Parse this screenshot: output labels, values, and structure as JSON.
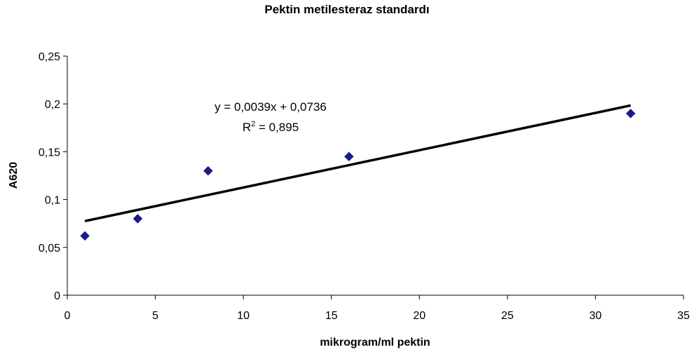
{
  "chart_data": {
    "type": "scatter",
    "title": "Pektin metilesteraz standardı",
    "xlabel": "mikrogram/ml pektin",
    "ylabel": "A620",
    "xlim": [
      0,
      35
    ],
    "ylim": [
      0,
      0.25
    ],
    "x_ticks": [
      "0",
      "5",
      "10",
      "15",
      "20",
      "25",
      "30",
      "35"
    ],
    "y_ticks": [
      "0",
      "0,05",
      "0,1",
      "0,15",
      "0,2",
      "0,25"
    ],
    "x_tick_values": [
      0,
      5,
      10,
      15,
      20,
      25,
      30,
      35
    ],
    "y_tick_values": [
      0,
      0.05,
      0.1,
      0.15,
      0.2,
      0.25
    ],
    "grid": false,
    "legend": "none",
    "series": [
      {
        "x": [
          1,
          4,
          8,
          16,
          32
        ],
        "y": [
          0.062,
          0.08,
          0.13,
          0.145,
          0.19
        ],
        "color": "#1a1a8c",
        "marker": "diamond"
      }
    ],
    "trendline": {
      "type": "linear",
      "slope": 0.0039,
      "intercept": 0.0736,
      "x_range": [
        1,
        32
      ],
      "color": "#000000",
      "equation_label": "y = 0,0039x + 0,0736",
      "r2_prefix": "R",
      "r2_exponent": "2",
      "r2_value_text": " = 0,895"
    }
  }
}
